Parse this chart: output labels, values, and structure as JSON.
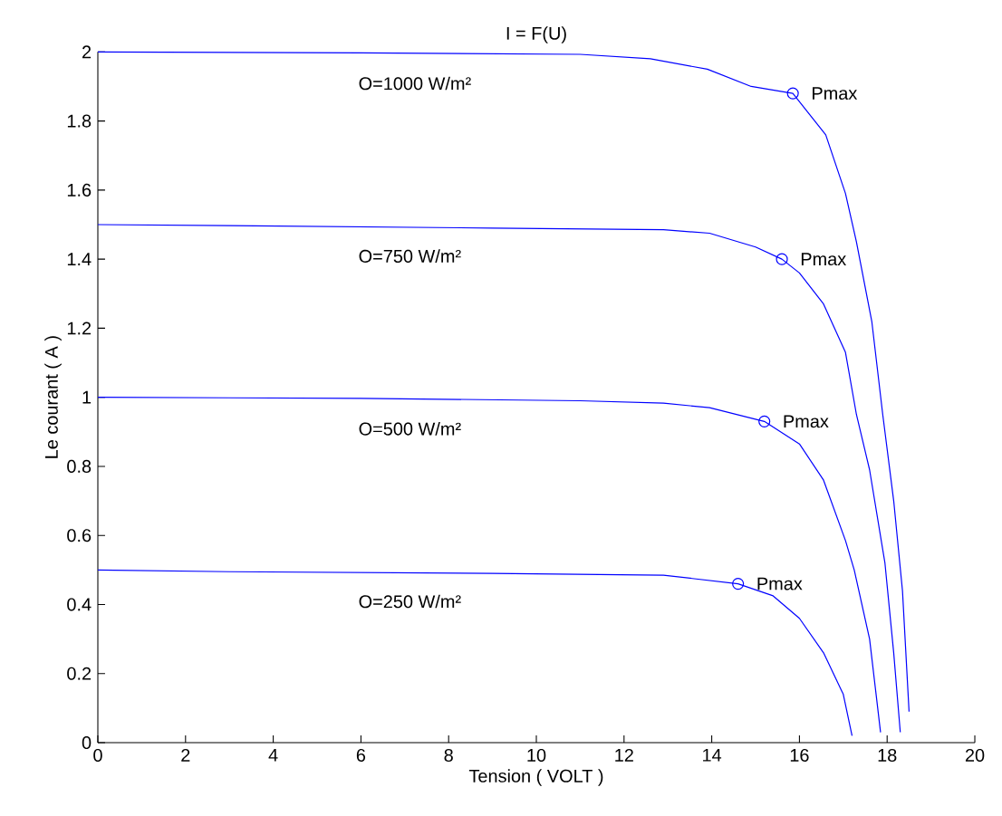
{
  "chart_data": {
    "type": "line",
    "title": "I = F(U)",
    "xlabel": "Tension ( VOLT )",
    "ylabel": "Le courant ( A )",
    "xlim": [
      0,
      20
    ],
    "ylim": [
      0,
      2
    ],
    "xticks": [
      0,
      2,
      4,
      6,
      8,
      10,
      12,
      14,
      16,
      18,
      20
    ],
    "yticks": [
      0,
      0.2,
      0.4,
      0.6,
      0.8,
      1,
      1.2,
      1.4,
      1.6,
      1.8,
      2
    ],
    "grid": false,
    "legend": false,
    "line_style": "solid",
    "marker": "none",
    "series": [
      {
        "name": "O=1000 W/m²",
        "color": "#0000ff",
        "x": [
          0,
          6,
          11,
          12.6,
          13.9,
          14.9,
          15.85,
          16.6,
          17.05,
          17.3,
          17.65,
          17.9,
          18.15,
          18.35,
          18.5
        ],
        "values": [
          2.0,
          1.997,
          1.993,
          1.98,
          1.95,
          1.9,
          1.88,
          1.76,
          1.59,
          1.45,
          1.22,
          0.95,
          0.7,
          0.44,
          0.09
        ]
      },
      {
        "name": "O=750 W/m²",
        "color": "#0000ff",
        "x": [
          0,
          3,
          9,
          12.9,
          13.95,
          15.0,
          15.6,
          16.0,
          16.55,
          17.05,
          17.3,
          17.6,
          17.95,
          18.15,
          18.3
        ],
        "values": [
          1.5,
          1.497,
          1.49,
          1.485,
          1.475,
          1.435,
          1.4,
          1.36,
          1.27,
          1.13,
          0.95,
          0.79,
          0.52,
          0.26,
          0.03
        ]
      },
      {
        "name": "O=500 W/m²",
        "color": "#0000ff",
        "x": [
          0,
          6,
          11,
          12.9,
          13.95,
          15.2,
          16.0,
          16.55,
          17.05,
          17.25,
          17.6,
          17.85
        ],
        "values": [
          1.0,
          0.997,
          0.99,
          0.983,
          0.97,
          0.93,
          0.865,
          0.76,
          0.585,
          0.5,
          0.3,
          0.03
        ]
      },
      {
        "name": "O=250 W/m²",
        "color": "#0000ff",
        "x": [
          0,
          3,
          9,
          12.9,
          14.6,
          15.4,
          16.0,
          16.55,
          17.0,
          17.2
        ],
        "values": [
          0.5,
          0.495,
          0.49,
          0.485,
          0.46,
          0.425,
          0.36,
          0.26,
          0.14,
          0.02
        ]
      },
      {
        "type": "scatter",
        "marker": "circle",
        "color": "#0000ff",
        "x": [
          15.85,
          15.6,
          15.2,
          14.6
        ],
        "values": [
          1.88,
          1.4,
          0.93,
          0.46
        ]
      }
    ],
    "annotations": [
      {
        "text": "Pmax",
        "x": 15.85,
        "y": 1.88
      },
      {
        "text": "Pmax",
        "x": 15.6,
        "y": 1.4
      },
      {
        "text": "Pmax",
        "x": 15.2,
        "y": 0.93
      },
      {
        "text": "Pmax",
        "x": 14.6,
        "y": 0.46
      }
    ]
  }
}
